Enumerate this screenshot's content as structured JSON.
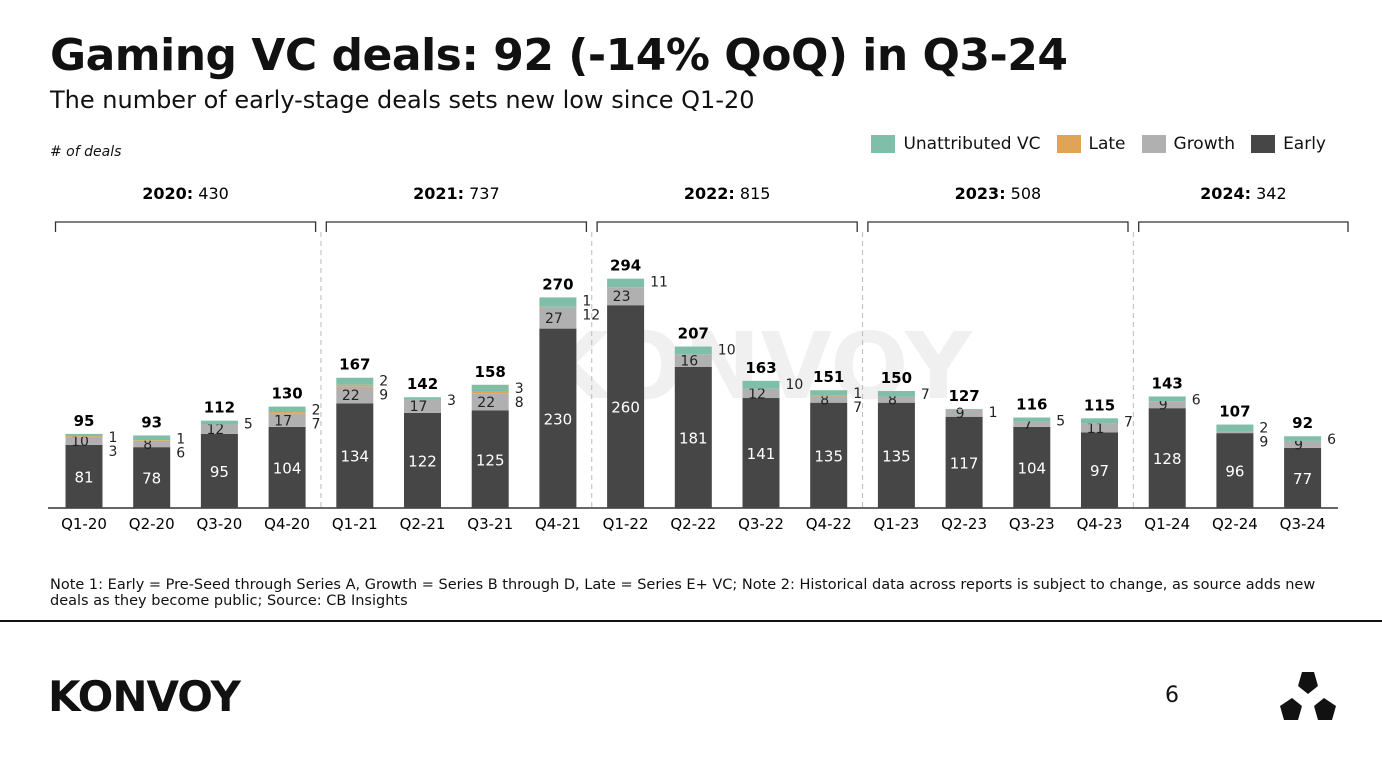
{
  "title": "Gaming VC deals: 92 (-14% QoQ) in Q3-24",
  "subtitle": "The number of early-stage deals sets new low since Q1-20",
  "note": "Note 1: Early = Pre-Seed through Series A, Growth = Series B through D, Late = Series E+ VC; Note 2: Historical data across reports is subject to change, as source adds new deals as they become public; Source: CB Insights",
  "logo": "KONVOY",
  "watermark": "KONVOY",
  "page_number": "6",
  "chart_data": {
    "type": "bar",
    "stacked": true,
    "ylabel": "# of deals",
    "legend_position": "top-right",
    "categories": [
      "Q1-20",
      "Q2-20",
      "Q3-20",
      "Q4-20",
      "Q1-21",
      "Q2-21",
      "Q3-21",
      "Q4-21",
      "Q1-22",
      "Q2-22",
      "Q3-22",
      "Q4-22",
      "Q1-23",
      "Q2-23",
      "Q3-23",
      "Q4-23",
      "Q1-24",
      "Q2-24",
      "Q3-24"
    ],
    "series": [
      {
        "name": "Early",
        "color": "#464646",
        "values": [
          81,
          78,
          95,
          104,
          134,
          122,
          125,
          230,
          260,
          181,
          141,
          135,
          135,
          117,
          104,
          97,
          128,
          96,
          77
        ]
      },
      {
        "name": "Growth",
        "color": "#b0b0b0",
        "values": [
          10,
          8,
          12,
          17,
          22,
          17,
          22,
          27,
          23,
          16,
          12,
          8,
          8,
          9,
          7,
          11,
          9,
          2,
          9
        ]
      },
      {
        "name": "Late",
        "color": "#e0a458",
        "values": [
          1,
          1,
          0,
          2,
          2,
          0,
          3,
          1,
          0,
          0,
          0,
          1,
          0,
          0,
          0,
          0,
          0,
          0,
          0
        ]
      },
      {
        "name": "Unattributed VC",
        "color": "#7fbfa9",
        "values": [
          3,
          6,
          5,
          7,
          9,
          3,
          8,
          12,
          11,
          10,
          10,
          7,
          7,
          1,
          5,
          7,
          6,
          9,
          6
        ]
      }
    ],
    "totals": [
      95,
      93,
      112,
      130,
      167,
      142,
      158,
      270,
      294,
      207,
      163,
      151,
      150,
      127,
      116,
      115,
      143,
      107,
      92
    ],
    "years": [
      {
        "label": "2020:",
        "total": "430"
      },
      {
        "label": "2021:",
        "total": "737"
      },
      {
        "label": "2022:",
        "total": "815"
      },
      {
        "label": "2023:",
        "total": "508"
      },
      {
        "label": "2024:",
        "total": "342"
      }
    ],
    "legend": [
      "Unattributed VC",
      "Late",
      "Growth",
      "Early"
    ]
  }
}
